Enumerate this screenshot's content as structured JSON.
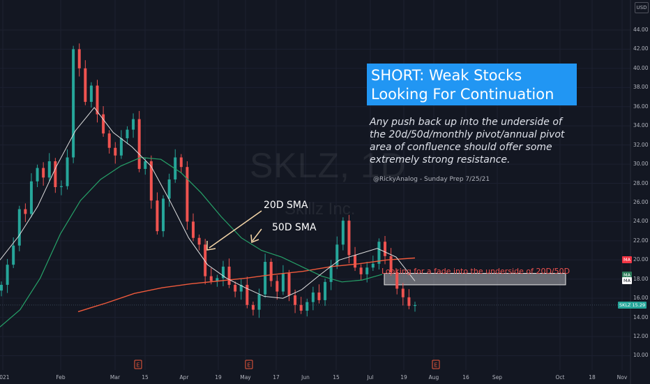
{
  "chart_data": {
    "type": "candlestick",
    "symbol_watermark": "SKLZ, 1D",
    "company_watermark": "Skillz Inc.",
    "currency": "USD",
    "title": "SHORT: Weak Stocks Looking For Continuation",
    "note": "Any push back up into the underside of the 20d/50d/monthly pivot/annual pivot area of confluence should offer some extremely strong resistance.",
    "credit": "@RickyAnalog - Sunday Prep 7/25/21",
    "annotations": {
      "sma20": "20D SMA",
      "sma50": "50D SMA",
      "fade": "Looking for a fade into the underside of 20D/50D"
    },
    "y_ticks": [
      "44.00",
      "42.00",
      "40.00",
      "38.00",
      "36.00",
      "34.00",
      "32.00",
      "30.00",
      "28.00",
      "26.00",
      "24.00",
      "22.00",
      "20.00",
      "18.00",
      "16.00",
      "14.00",
      "12.00",
      "10.00"
    ],
    "x_ticks": [
      "2021",
      "Feb",
      "Mar",
      "15",
      "Apr",
      "19",
      "May",
      "17",
      "Jun",
      "15",
      "Jul",
      "19",
      "Aug",
      "16",
      "Sep",
      "Oct",
      "18",
      "Nov"
    ],
    "earnings_marker": "E",
    "price_tags": [
      {
        "label": "MA",
        "value": 20.0,
        "color": "#f23645"
      },
      {
        "label": "MA",
        "value": 18.4,
        "color": "#2e7d5b"
      },
      {
        "label": "MA",
        "value": 17.8,
        "color": "#ffffff"
      },
      {
        "label": "SKLZ",
        "value": 15.29,
        "display": "15.29",
        "color": "#26a69a"
      }
    ],
    "last_price": 15.29,
    "resistance_zone": [
      17.4,
      18.6
    ],
    "ylim": [
      9.5,
      45.5
    ],
    "series": [
      {
        "name": "Price",
        "values": [
          17.4,
          19.5,
          21.5,
          25.3,
          24.8,
          28.2,
          29.6,
          28.6,
          30.3,
          27.6,
          27.7,
          30.7,
          42.0,
          40.0,
          36.5,
          38.2,
          35.2,
          33.2,
          31.7,
          30.9,
          32.7,
          33.6,
          34.7,
          29.5,
          30.3,
          26.2,
          23.0,
          26.4,
          28.4,
          30.7,
          29.7,
          24.0,
          22.3,
          21.6,
          18.3,
          17.8,
          18.1,
          19.3,
          17.4,
          16.7,
          17.4,
          15.3,
          14.8,
          16.4,
          19.8,
          17.8,
          16.7,
          18.6,
          16.3,
          15.3,
          14.7,
          15.6,
          16.6,
          15.8,
          17.7,
          19.4,
          21.6,
          24.1,
          20.5,
          19.2,
          18.5,
          19.2,
          19.6,
          21.9,
          20.4,
          18.7,
          17.0,
          16.1,
          15.2,
          15.29
        ]
      },
      {
        "name": "20D SMA",
        "values": [
          20.0,
          22.5,
          25.6,
          29.8,
          33.5,
          35.9,
          33.3,
          31.8,
          29.8,
          26.2,
          22.3,
          19.5,
          18.1,
          17.1,
          16.2,
          16.0,
          16.9,
          18.5,
          20.0,
          20.6,
          21.2,
          20.3,
          17.8
        ]
      },
      {
        "name": "50D SMA",
        "values": [
          13.0,
          14.8,
          18.1,
          22.7,
          26.2,
          28.4,
          29.8,
          30.7,
          30.5,
          29.1,
          27.0,
          24.5,
          22.3,
          21.0,
          20.3,
          19.3,
          18.3,
          17.7,
          17.9,
          18.5
        ]
      },
      {
        "name": "200D SMA",
        "values": [
          14.6,
          15.5,
          16.5,
          17.1,
          17.5,
          17.8,
          18.1,
          18.5,
          18.8,
          19.3,
          19.6,
          20.0,
          20.2
        ]
      }
    ]
  }
}
